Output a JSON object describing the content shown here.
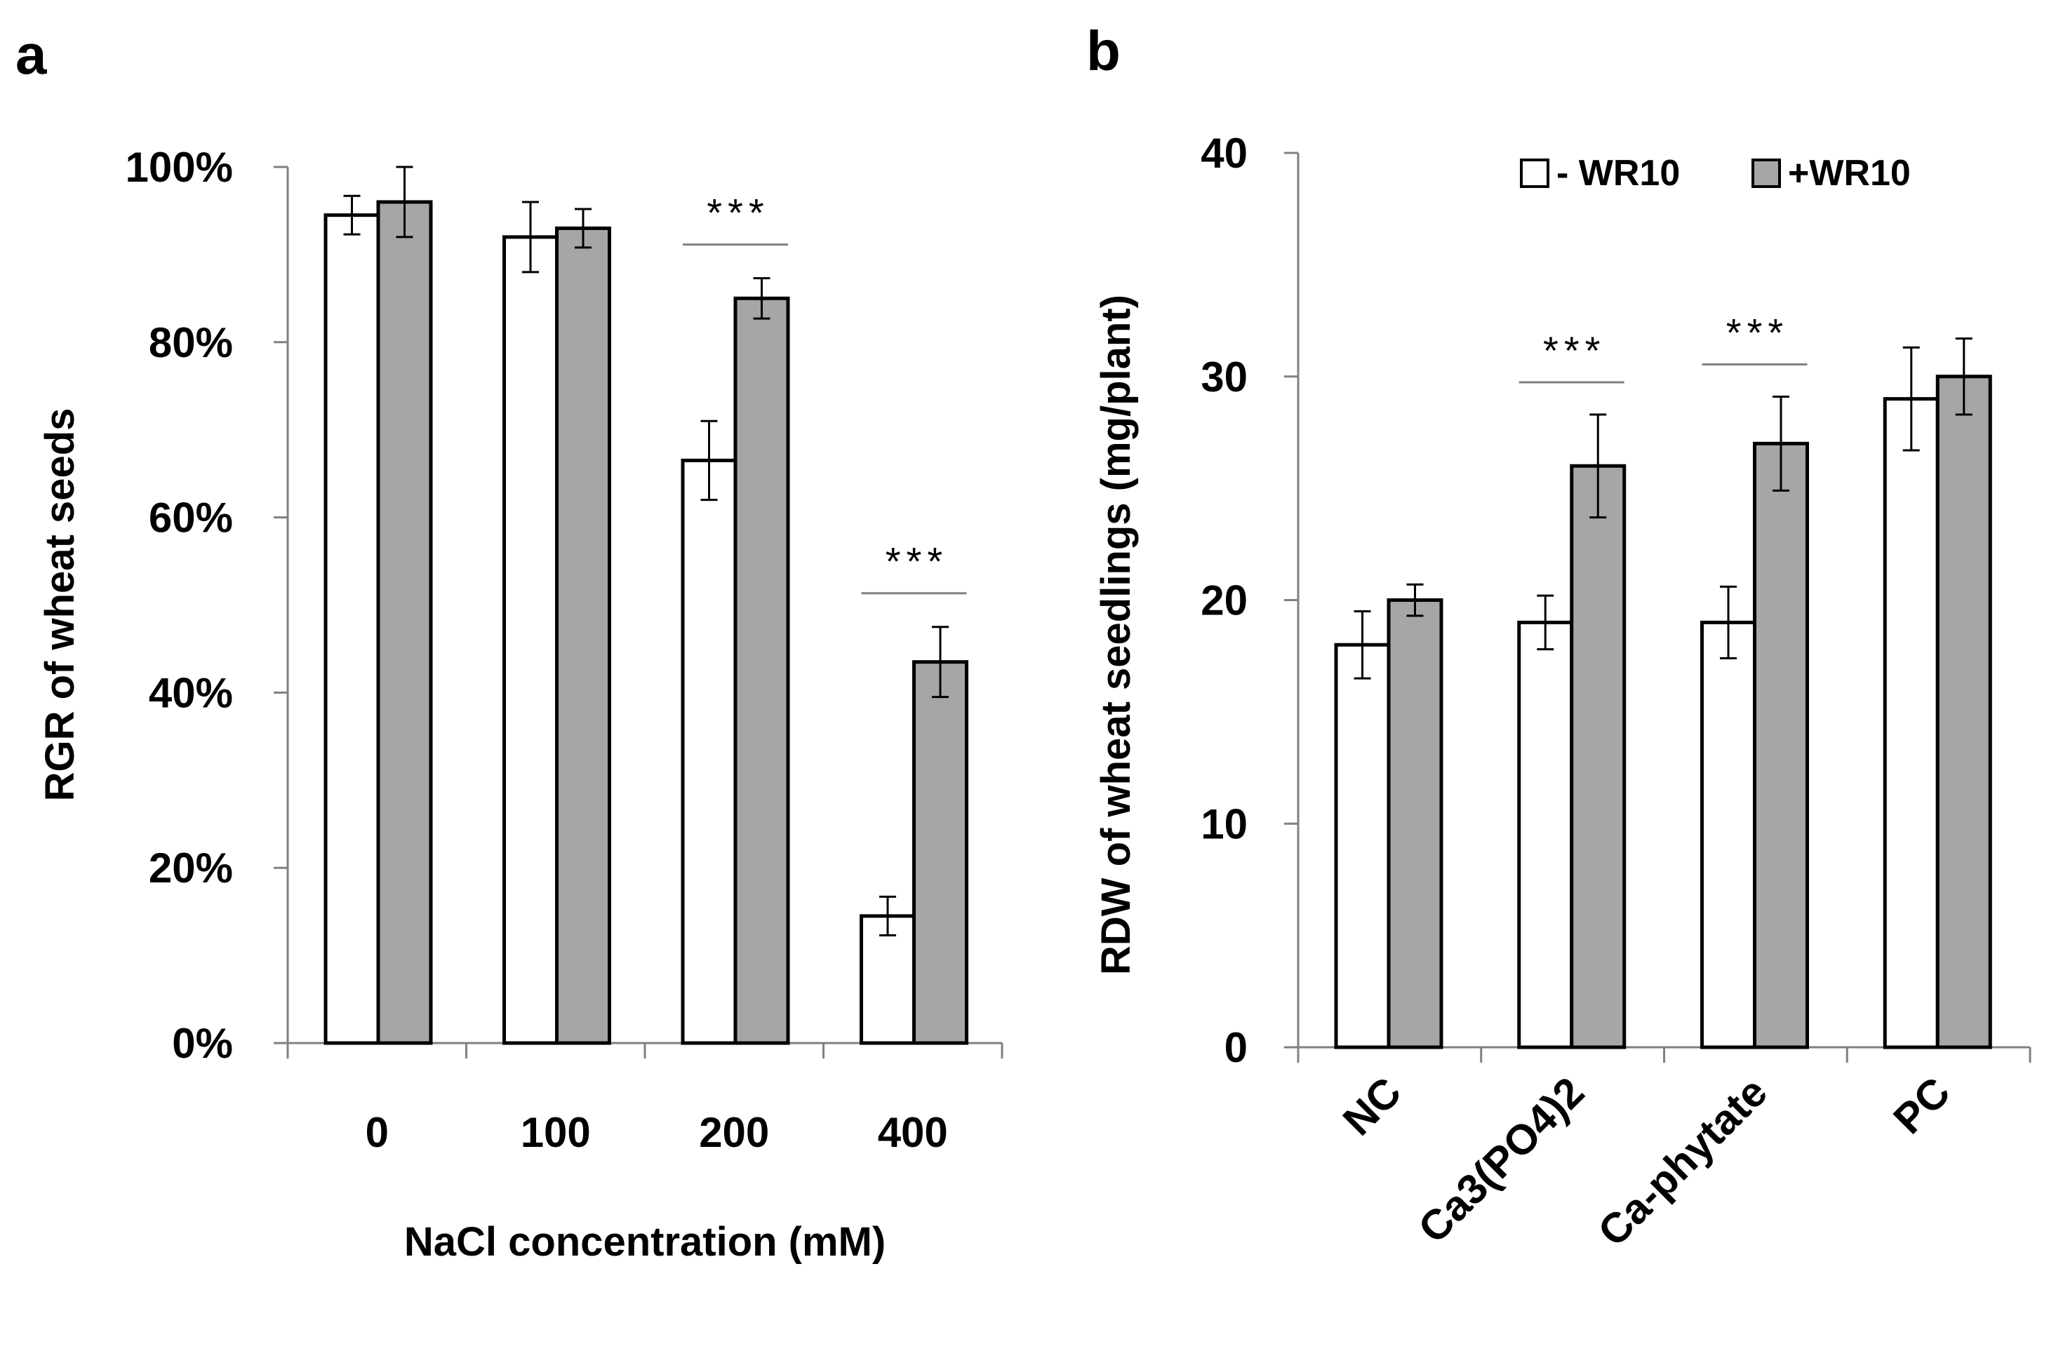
{
  "colors": {
    "without": "#ffffff",
    "with": "#a6a6a6",
    "stroke": "#000000",
    "axis": "#808080"
  },
  "chart_data": [
    {
      "panel": "a",
      "type": "bar",
      "xlabel": "NaCl concentration (mM)",
      "ylabel": "RGR of wheat seeds",
      "ylim": [
        0,
        100
      ],
      "yticks": [
        0,
        20,
        40,
        60,
        80,
        100
      ],
      "ytick_labels": [
        "0%",
        "20%",
        "40%",
        "60%",
        "80%",
        "100%"
      ],
      "categories": [
        "0",
        "100",
        "200",
        "400"
      ],
      "series": [
        {
          "name": "- WR10",
          "values": [
            94.5,
            92,
            66.5,
            14.5
          ],
          "errors": [
            2.2,
            4,
            4.5,
            2.2
          ]
        },
        {
          "name": "+WR10",
          "values": [
            96,
            93,
            85,
            43.5
          ],
          "errors": [
            4,
            2.2,
            2.3,
            4
          ]
        }
      ],
      "significance": [
        {
          "category": "200",
          "label": "***"
        },
        {
          "category": "400",
          "label": "***"
        }
      ]
    },
    {
      "panel": "b",
      "type": "bar",
      "xlabel": "",
      "ylabel": "RDW of wheat seedlings (mg/plant)",
      "ylim": [
        0,
        40
      ],
      "yticks": [
        0,
        10,
        20,
        30,
        40
      ],
      "ytick_labels": [
        "0",
        "10",
        "20",
        "30",
        "40"
      ],
      "categories": [
        "NC",
        "Ca3(PO4)2",
        "Ca-phytate",
        "PC"
      ],
      "series": [
        {
          "name": "- WR10",
          "values": [
            18,
            19,
            19,
            29
          ],
          "errors": [
            1.5,
            1.2,
            1.6,
            2.3
          ]
        },
        {
          "name": "+WR10",
          "values": [
            20,
            26,
            27,
            30
          ],
          "errors": [
            0.7,
            2.3,
            2.1,
            1.7
          ]
        }
      ],
      "legend": {
        "position": "top-right",
        "entries": [
          "- WR10",
          "+WR10"
        ]
      },
      "significance": [
        {
          "category": "Ca3(PO4)2",
          "label": "***"
        },
        {
          "category": "Ca-phytate",
          "label": "***"
        }
      ]
    }
  ]
}
